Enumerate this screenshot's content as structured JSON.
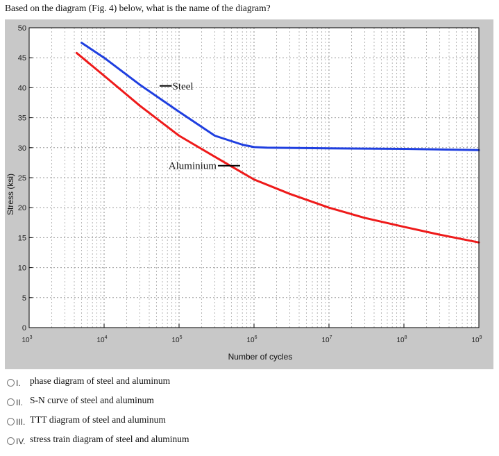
{
  "question": "Based on the diagram  (Fig. 4) below,  what is the name of the diagram?",
  "options": [
    {
      "numeral": "I.",
      "text": "phase diagram of steel and aluminum"
    },
    {
      "numeral": "II.",
      "text": "S-N curve of steel and aluminum"
    },
    {
      "numeral": "III.",
      "text": "TTT diagram of steel and aluminum"
    },
    {
      "numeral": "IV.",
      "text": "stress train diagram of steel and aluminum"
    }
  ],
  "chart_data": {
    "type": "line",
    "xlabel": "Number of cycles",
    "ylabel": "Stress (ksi)",
    "xscale": "log",
    "xlim": [
      1000,
      1000000000
    ],
    "ylim": [
      0,
      50
    ],
    "xticks": [
      {
        "base": "10",
        "exp": "3"
      },
      {
        "base": "10",
        "exp": "4"
      },
      {
        "base": "10",
        "exp": "5"
      },
      {
        "base": "10",
        "exp": "6"
      },
      {
        "base": "10",
        "exp": "7"
      },
      {
        "base": "10",
        "exp": "8"
      },
      {
        "base": "10",
        "exp": "9"
      }
    ],
    "yticks": [
      "0",
      "5",
      "10",
      "15",
      "20",
      "25",
      "30",
      "35",
      "40",
      "45",
      "50"
    ],
    "grid": true,
    "series": [
      {
        "name": "Steel",
        "color": "#1f3fe0",
        "x": [
          5000,
          10000,
          30000,
          100000,
          300000,
          700000,
          1000000,
          1500000,
          10000000,
          100000000,
          1000000000
        ],
        "y": [
          47.5,
          45,
          40.5,
          36,
          32,
          30.5,
          30.1,
          30,
          29.9,
          29.8,
          29.6
        ]
      },
      {
        "name": "Aluminium",
        "color": "#ee1a1a",
        "x": [
          4300,
          10000,
          30000,
          100000,
          300000,
          1000000,
          3000000,
          10000000,
          30000000,
          100000000,
          300000000,
          1000000000
        ],
        "y": [
          45.8,
          42,
          37,
          32,
          28.5,
          24.7,
          22.3,
          20,
          18.3,
          16.8,
          15.5,
          14.2
        ]
      }
    ],
    "annotations": [
      {
        "text": "Steel",
        "series": "Steel",
        "x": 80000,
        "y": 40.3
      },
      {
        "text": "Aluminium",
        "series": "Aluminium",
        "x": 550000,
        "y": 27
      }
    ]
  }
}
